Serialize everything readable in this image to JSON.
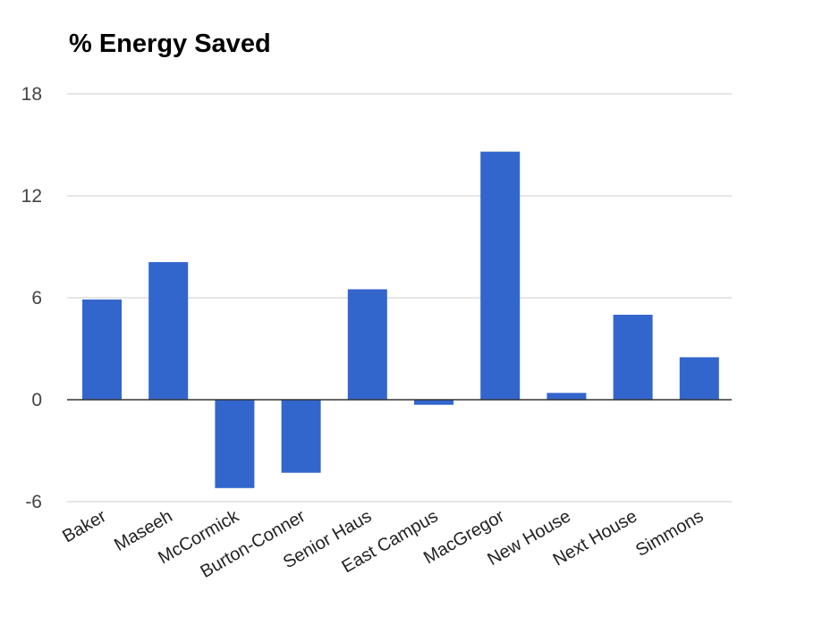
{
  "chart_data": {
    "type": "bar",
    "title": "% Energy Saved",
    "xlabel": "",
    "ylabel": "",
    "categories": [
      "Baker",
      "Maseeh",
      "McCormick",
      "Burton-Conner",
      "Senior Haus",
      "East Campus",
      "MacGregor",
      "New House",
      "Next House",
      "Simmons"
    ],
    "values": [
      5.9,
      8.1,
      -5.2,
      -4.3,
      6.5,
      -0.3,
      14.6,
      0.4,
      5.0,
      2.5
    ],
    "ylim": [
      -6,
      18
    ],
    "yticks": [
      -6,
      0,
      6,
      12,
      18
    ],
    "grid": true,
    "legend": "none",
    "bar_color": "#3366cc",
    "grid_color": "#cccccc",
    "zero_line_color": "#333333"
  }
}
